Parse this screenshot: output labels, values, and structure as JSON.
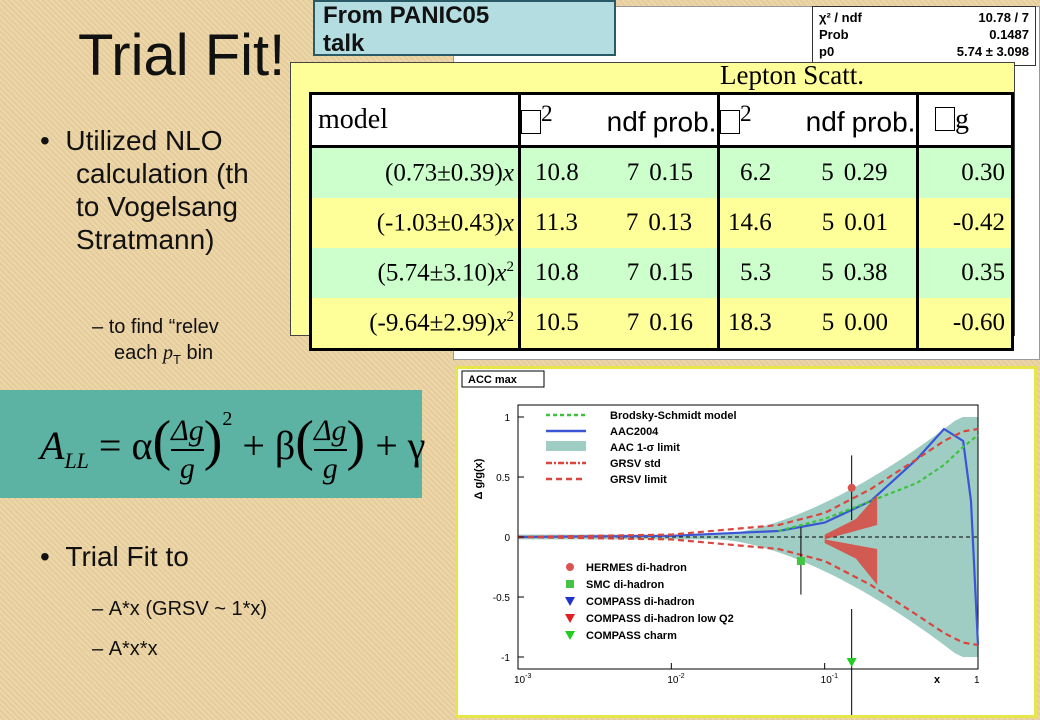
{
  "slide": {
    "title": "Trial Fit!",
    "bullets": [
      {
        "text": "Utilized NLO",
        "line2": "calculation (th",
        "line3": "to Vogelsang",
        "line4": "Stratmann)"
      },
      {
        "text": "Trial Fit to"
      }
    ],
    "sub_items": [
      {
        "line1": "to find “relev",
        "line2a": "each ",
        "line2_sym": "p",
        "line2_sub": "T",
        "line2b": " bin"
      },
      {
        "line1": "A*x (GRSV ~ 1*x)"
      },
      {
        "line1": "A*x*x"
      }
    ],
    "formula": {
      "lhs": "A",
      "lhs_sub": "LL",
      "eq": "= α",
      "frac_num": "Δg",
      "frac_den": "g",
      "exp": "2",
      "plus1": "+ β",
      "plus2": "+ γ"
    }
  },
  "panic_label": {
    "line1": "From PANIC05",
    "line2": "talk"
  },
  "statbox": [
    {
      "key": "χ² / ndf",
      "value": "10.78 / 7"
    },
    {
      "key": "Prob",
      "value": "0.1487"
    },
    {
      "key": "p0",
      "value": "5.74 ± 3.098"
    }
  ],
  "fit_table": {
    "title": "Lepton Scatt.",
    "headers": {
      "model": "model",
      "chi2": "2",
      "ndf": "ndf",
      "prob": "prob.",
      "chi2b": "2",
      "ndf2": "ndf",
      "prob2": "prob.",
      "dg": "g"
    },
    "rows": [
      {
        "model": "(0.73±0.39)",
        "pow": "",
        "c1": "10.8",
        "n1": "7",
        "p1": "0.15",
        "c2": "6.2",
        "n2": "5",
        "p2": "0.29",
        "dg": "0.30"
      },
      {
        "model": "(-1.03±0.43)",
        "pow": "",
        "c1": "11.3",
        "n1": "7",
        "p1": "0.13",
        "c2": "14.6",
        "n2": "5",
        "p2": "0.01",
        "dg": "-0.42"
      },
      {
        "model": "(5.74±3.10)",
        "pow": "2",
        "c1": "10.8",
        "n1": "7",
        "p1": "0.15",
        "c2": "5.3",
        "n2": "5",
        "p2": "0.38",
        "dg": "0.35"
      },
      {
        "model": "(-9.64±2.99)",
        "pow": "2",
        "c1": "10.5",
        "n1": "7",
        "p1": "0.16",
        "c2": "18.3",
        "n2": "5",
        "p2": "0.00",
        "dg": "-0.60"
      }
    ],
    "x_var": "x"
  },
  "plot": {
    "panel_label": "ACC max",
    "ylabel": "Δ g/g(x)",
    "xlabel": "x",
    "yticks": [
      "1",
      "0.5",
      "0",
      "-0.5",
      "-1"
    ],
    "xticks": [
      "10",
      "10",
      "10",
      "1"
    ],
    "xtick_exp": [
      "-3",
      "-2",
      "-1",
      ""
    ],
    "legend_top": [
      "Brodsky-Schmidt model",
      "AAC2004",
      "AAC 1-σ limit",
      "GRSV std",
      "GRSV limit"
    ],
    "legend_bottom": [
      "HERMES di-hadron",
      "SMC di-hadron",
      "COMPASS di-hadron",
      "COMPASS di-hadron low Q2",
      "COMPASS charm"
    ],
    "colors": {
      "band": "#9fcdc3",
      "aac": "#3a56d6",
      "grsv": "#d9463e",
      "bs": "#3cc43c",
      "hermes": "#d9534f",
      "smc": "#44c444",
      "compass": "#2233cc",
      "compass_lowq2": "#e02020",
      "charm": "#22cc22"
    },
    "chart_data": {
      "type": "line",
      "x_scale": "log",
      "xlim": [
        0.001,
        1
      ],
      "ylim": [
        -1.1,
        1.1
      ],
      "series": [
        {
          "name": "AAC2004",
          "x": [
            0.001,
            0.01,
            0.05,
            0.1,
            0.2,
            0.4,
            0.6,
            0.8,
            0.9,
            1.0
          ],
          "values": [
            0.0,
            0.01,
            0.05,
            0.12,
            0.3,
            0.65,
            0.9,
            0.8,
            0.3,
            -0.9
          ]
        },
        {
          "name": "GRSV limit",
          "x": [
            0.001,
            0.01,
            0.05,
            0.1,
            0.2,
            0.4,
            0.6,
            0.8,
            1.0
          ],
          "values": [
            0.0,
            0.02,
            0.1,
            0.2,
            0.4,
            0.65,
            0.8,
            0.88,
            0.9
          ]
        },
        {
          "name": "Brodsky-Schmidt model",
          "x": [
            0.05,
            0.1,
            0.2,
            0.4,
            0.6,
            0.8,
            1.0
          ],
          "values": [
            0.05,
            0.15,
            0.3,
            0.45,
            0.6,
            0.75,
            0.85
          ]
        }
      ],
      "points": [
        {
          "name": "HERMES di-hadron",
          "x": 0.15,
          "y": 0.41,
          "err": 0.27
        },
        {
          "name": "SMC di-hadron",
          "x": 0.07,
          "y": -0.2,
          "err": 0.28
        },
        {
          "name": "COMPASS charm",
          "x": 0.15,
          "y": -1.05,
          "err": 0.45
        }
      ]
    }
  }
}
